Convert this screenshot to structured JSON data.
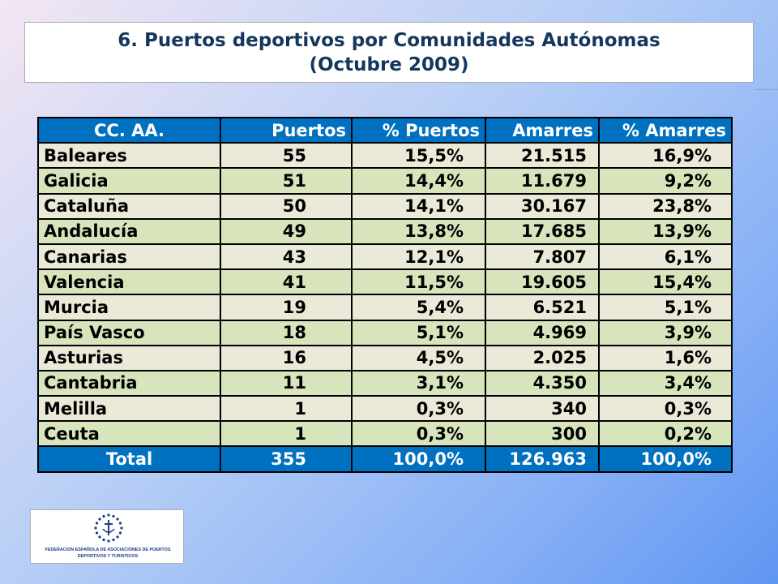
{
  "title": {
    "line1": "6. Puertos deportivos por Comunidades Autónomas",
    "line2": "(Octubre 2009)"
  },
  "table": {
    "headers": [
      "CC. AA.",
      "Puertos",
      "% Puertos",
      "Amarres",
      "% Amarres"
    ],
    "rows": [
      [
        "Baleares",
        "55",
        "15,5%",
        "21.515",
        "16,9%"
      ],
      [
        "Galicia",
        "51",
        "14,4%",
        "11.679",
        "9,2%"
      ],
      [
        "Cataluña",
        "50",
        "14,1%",
        "30.167",
        "23,8%"
      ],
      [
        "Andalucía",
        "49",
        "13,8%",
        "17.685",
        "13,9%"
      ],
      [
        "Canarias",
        "43",
        "12,1%",
        "7.807",
        "6,1%"
      ],
      [
        "Valencia",
        "41",
        "11,5%",
        "19.605",
        "15,4%"
      ],
      [
        "Murcia",
        "19",
        "5,4%",
        "6.521",
        "5,1%"
      ],
      [
        "País Vasco",
        "18",
        "5,1%",
        "4.969",
        "3,9%"
      ],
      [
        "Asturias",
        "16",
        "4,5%",
        "2.025",
        "1,6%"
      ],
      [
        "Cantabria",
        "11",
        "3,1%",
        "4.350",
        "3,4%"
      ],
      [
        "Melilla",
        "1",
        "0,3%",
        "340",
        "0,3%"
      ],
      [
        "Ceuta",
        "1",
        "0,3%",
        "300",
        "0,2%"
      ]
    ],
    "total": [
      "Total",
      "355",
      "100,0%",
      "126.963",
      "100,0%"
    ]
  },
  "logo": {
    "line1": "FEDERACION ESPAÑOLA DE ASOCIACIONES DE PUERTOS",
    "line2": "DEPORTIVOS Y TURISTICOS",
    "icon": "federation-emblem-icon",
    "color": "#1f3c88"
  },
  "colors": {
    "header_bg": "#0070c0",
    "row_odd_bg": "#ebe9d8",
    "row_even_bg": "#d7e4bc",
    "title_text": "#17365d"
  }
}
